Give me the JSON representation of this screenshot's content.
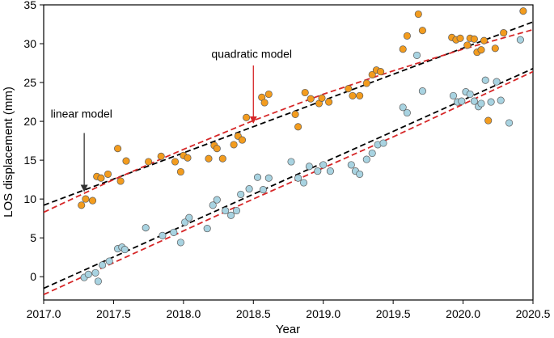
{
  "chart_data": {
    "type": "scatter",
    "title": "",
    "xlabel": "Year",
    "ylabel": "LOS displacement (mm)",
    "xlim": [
      2017.0,
      2020.5
    ],
    "ylim": [
      -3,
      35
    ],
    "xticks": [
      2017.0,
      2017.5,
      2018.0,
      2018.5,
      2019.0,
      2019.5,
      2020.0,
      2020.5
    ],
    "xtick_labels": [
      "2017.0",
      "2017.5",
      "2018.0",
      "2018.5",
      "2019.0",
      "2019.5",
      "2020.0",
      "2020.5"
    ],
    "yticks": [
      0,
      5,
      10,
      15,
      20,
      25,
      30,
      35
    ],
    "ytick_labels": [
      "0",
      "5",
      "10",
      "15",
      "20",
      "25",
      "30",
      "35"
    ],
    "series": [
      {
        "name": "upper points",
        "color": "#F39C1E",
        "x": [
          2017.27,
          2017.3,
          2017.35,
          2017.38,
          2017.41,
          2017.46,
          2017.53,
          2017.55,
          2017.59,
          2017.75,
          2017.84,
          2017.94,
          2017.98,
          2018.0,
          2018.03,
          2018.18,
          2018.22,
          2018.24,
          2018.28,
          2018.36,
          2018.39,
          2018.42,
          2018.45,
          2018.56,
          2018.58,
          2018.61,
          2018.8,
          2018.82,
          2018.87,
          2018.91,
          2018.97,
          2018.99,
          2019.04,
          2019.18,
          2019.21,
          2019.26,
          2019.31,
          2019.35,
          2019.38,
          2019.41,
          2019.57,
          2019.6,
          2019.68,
          2019.71,
          2019.92,
          2019.95,
          2019.98,
          2020.03,
          2020.05,
          2020.08,
          2020.1,
          2020.13,
          2020.15,
          2020.18,
          2020.23,
          2020.29,
          2020.43
        ],
        "y": [
          9.2,
          10.0,
          9.8,
          12.9,
          12.7,
          13.2,
          16.5,
          12.3,
          14.9,
          14.8,
          15.5,
          14.8,
          13.5,
          15.6,
          15.3,
          15.2,
          16.9,
          16.5,
          15.2,
          17.0,
          18.1,
          17.6,
          20.5,
          23.1,
          22.4,
          23.5,
          20.9,
          19.3,
          23.7,
          22.9,
          22.3,
          23.0,
          22.5,
          24.2,
          23.3,
          23.3,
          24.9,
          26.0,
          26.6,
          26.4,
          29.3,
          31.0,
          33.8,
          31.7,
          30.8,
          30.5,
          30.7,
          29.8,
          30.7,
          30.6,
          28.9,
          29.2,
          30.4,
          20.1,
          29.4,
          31.4,
          34.2
        ]
      },
      {
        "name": "lower points",
        "color": "#A8D3E1",
        "x": [
          2017.29,
          2017.32,
          2017.37,
          2017.39,
          2017.42,
          2017.47,
          2017.53,
          2017.56,
          2017.58,
          2017.73,
          2017.85,
          2017.93,
          2017.98,
          2018.01,
          2018.04,
          2018.17,
          2018.21,
          2018.24,
          2018.3,
          2018.34,
          2018.38,
          2018.41,
          2018.47,
          2018.53,
          2018.57,
          2018.61,
          2018.77,
          2018.82,
          2018.86,
          2018.9,
          2018.96,
          2019.0,
          2019.05,
          2019.2,
          2019.23,
          2019.26,
          2019.31,
          2019.35,
          2019.39,
          2019.43,
          2019.57,
          2019.6,
          2019.67,
          2019.71,
          2019.93,
          2019.96,
          2019.99,
          2020.02,
          2020.05,
          2020.08,
          2020.11,
          2020.13,
          2020.16,
          2020.2,
          2020.24,
          2020.27,
          2020.33,
          2020.41
        ],
        "y": [
          -0.1,
          0.3,
          0.5,
          -0.6,
          1.5,
          2.0,
          3.6,
          3.8,
          3.5,
          6.3,
          5.3,
          5.7,
          4.4,
          7.0,
          7.6,
          6.2,
          9.2,
          9.9,
          8.5,
          7.9,
          8.5,
          10.6,
          11.3,
          12.8,
          11.2,
          12.7,
          14.8,
          12.7,
          12.1,
          14.2,
          13.6,
          14.4,
          13.6,
          14.4,
          13.6,
          13.2,
          15.1,
          15.9,
          17.0,
          17.2,
          21.8,
          21.1,
          28.5,
          23.9,
          23.3,
          22.5,
          22.6,
          23.8,
          23.5,
          22.6,
          21.9,
          22.3,
          25.3,
          22.5,
          25.1,
          22.7,
          19.8,
          30.5
        ]
      }
    ],
    "lines": [
      {
        "name": "linear fit (upper)",
        "color": "#000000",
        "style": "dashed",
        "x": [
          2017.0,
          2020.5
        ],
        "y": [
          9.2,
          32.8
        ]
      },
      {
        "name": "quadratic fit (upper)",
        "color": "#D62728",
        "style": "dashed",
        "x": [
          2017.0,
          2017.5,
          2018.0,
          2018.5,
          2019.0,
          2019.5,
          2020.0,
          2020.5
        ],
        "y": [
          8.3,
          12.5,
          16.4,
          20.1,
          23.5,
          26.5,
          29.3,
          31.8
        ]
      },
      {
        "name": "linear fit (lower)",
        "color": "#000000",
        "style": "dashed",
        "x": [
          2017.0,
          2020.5
        ],
        "y": [
          -1.5,
          26.8
        ]
      },
      {
        "name": "quadratic fit (lower)",
        "color": "#D62728",
        "style": "dashed",
        "x": [
          2017.0,
          2017.5,
          2018.0,
          2018.5,
          2019.0,
          2019.5,
          2020.0,
          2020.5
        ],
        "y": [
          -2.3,
          1.8,
          5.9,
          10.0,
          14.0,
          18.0,
          22.2,
          26.4
        ]
      }
    ],
    "annotations": [
      {
        "text": "linear model",
        "arrow_color": "#333333",
        "text_x": 2017.05,
        "text_y": 20.5,
        "arrow_from": [
          2017.29,
          18.5
        ],
        "arrow_to": [
          2017.29,
          11.0
        ]
      },
      {
        "text": "quadratic model",
        "arrow_color": "#D62728",
        "text_x": 2018.2,
        "text_y": 28.2,
        "arrow_from": [
          2018.5,
          27.2
        ],
        "arrow_to": [
          2018.5,
          19.8
        ]
      }
    ]
  }
}
